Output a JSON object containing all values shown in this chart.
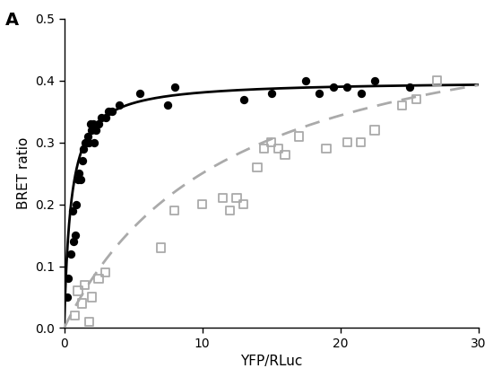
{
  "title": "A",
  "xlabel": "YFP/RLuc",
  "ylabel": "BRET ratio",
  "xlim": [
    0,
    30
  ],
  "ylim": [
    0,
    0.5
  ],
  "xticks": [
    0,
    10,
    20,
    30
  ],
  "yticks": [
    0.0,
    0.1,
    0.2,
    0.3,
    0.4,
    0.5
  ],
  "black_dots_x": [
    0.2,
    0.3,
    0.5,
    0.6,
    0.7,
    0.8,
    0.9,
    1.0,
    1.1,
    1.2,
    1.3,
    1.4,
    1.5,
    1.6,
    1.7,
    1.8,
    1.9,
    2.0,
    2.1,
    2.2,
    2.3,
    2.5,
    2.7,
    3.0,
    3.2,
    3.5,
    4.0,
    5.5,
    7.5,
    8.0,
    13.0,
    15.0,
    17.5,
    18.5,
    19.5,
    20.5,
    21.5,
    22.5,
    25.0
  ],
  "black_dots_y": [
    0.05,
    0.08,
    0.12,
    0.19,
    0.14,
    0.15,
    0.2,
    0.24,
    0.25,
    0.24,
    0.27,
    0.29,
    0.3,
    0.3,
    0.31,
    0.3,
    0.33,
    0.32,
    0.33,
    0.3,
    0.32,
    0.33,
    0.34,
    0.34,
    0.35,
    0.35,
    0.36,
    0.38,
    0.36,
    0.39,
    0.37,
    0.38,
    0.4,
    0.38,
    0.39,
    0.39,
    0.38,
    0.4,
    0.39
  ],
  "gray_squares_x": [
    0.8,
    1.0,
    1.3,
    1.5,
    1.8,
    2.0,
    2.5,
    3.0,
    7.0,
    8.0,
    10.0,
    11.5,
    12.0,
    12.5,
    13.0,
    14.0,
    14.5,
    15.0,
    15.5,
    16.0,
    17.0,
    19.0,
    20.5,
    21.5,
    22.5,
    24.5,
    25.5,
    27.0
  ],
  "gray_squares_y": [
    0.02,
    0.06,
    0.04,
    0.07,
    0.01,
    0.05,
    0.08,
    0.09,
    0.13,
    0.19,
    0.2,
    0.21,
    0.19,
    0.21,
    0.2,
    0.26,
    0.29,
    0.3,
    0.29,
    0.28,
    0.31,
    0.29,
    0.3,
    0.3,
    0.32,
    0.36,
    0.37,
    0.4
  ],
  "black_curve_Bmax": 0.4,
  "black_curve_K": 0.5,
  "gray_curve_Bmax": 0.55,
  "gray_curve_K": 12.0,
  "black_line_color": "#000000",
  "gray_line_color": "#aaaaaa",
  "dot_color": "#000000",
  "square_edgecolor": "#aaaaaa",
  "background_color": "#ffffff",
  "figwidth": 5.5,
  "figheight": 4.2,
  "dpi": 100
}
